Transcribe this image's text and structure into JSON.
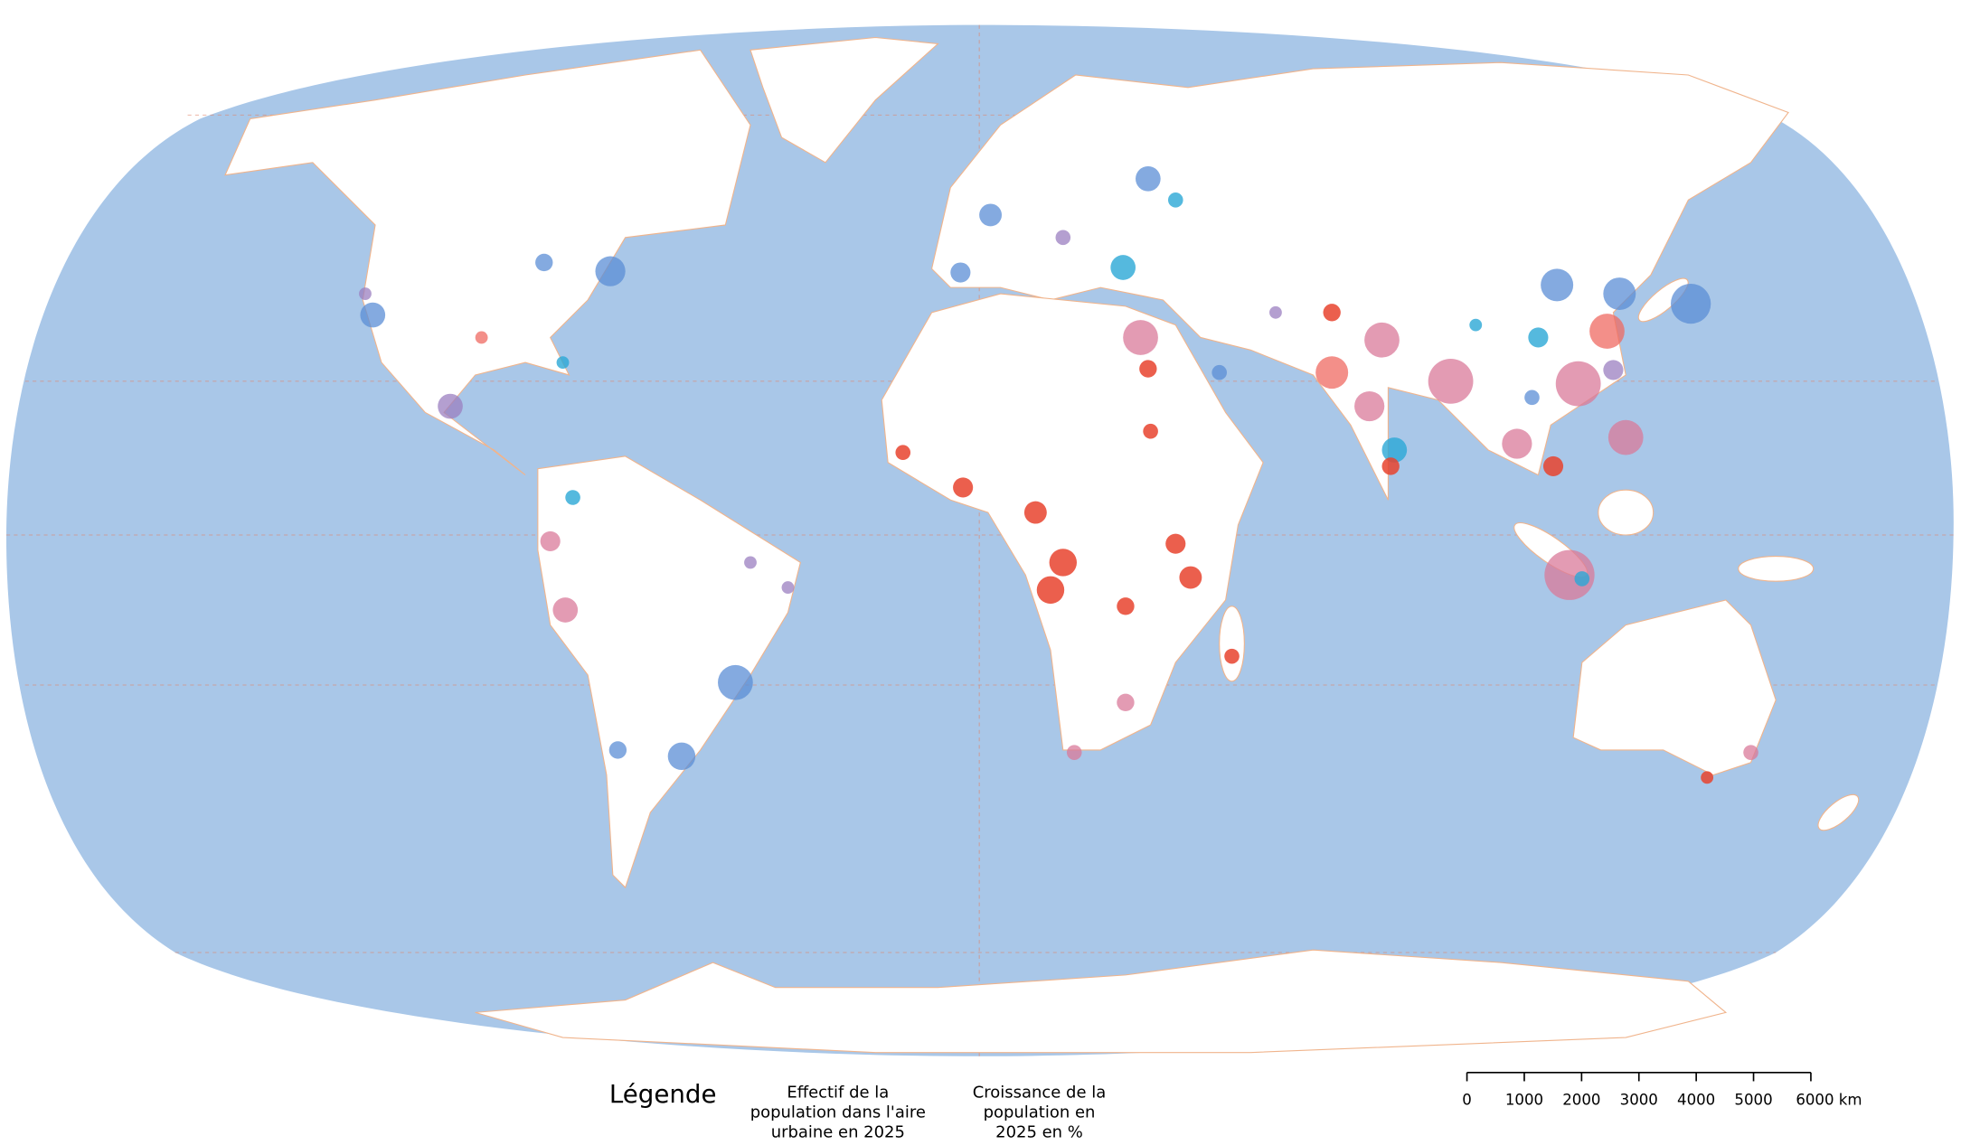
{
  "legend": {
    "title": "Légende",
    "population_label": [
      "Effectif de la",
      "population dans l'aire",
      "urbaine en 2025"
    ],
    "growth_label": [
      "Croissance de la",
      "population en",
      "2025 en %"
    ]
  },
  "scale_bar": {
    "ticks": [
      0,
      1000,
      2000,
      3000,
      4000,
      5000,
      {
        "value": 6000,
        "label": "6000 km"
      }
    ]
  }
}
